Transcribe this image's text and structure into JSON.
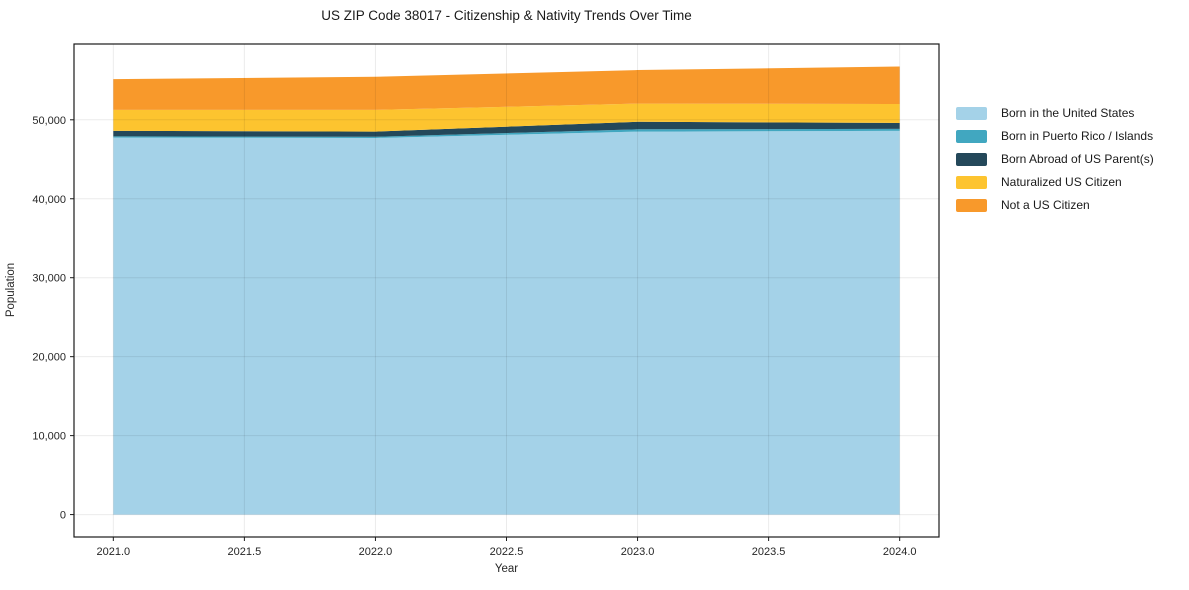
{
  "title": "US ZIP Code 38017 - Citizenship & Nativity Trends Over Time",
  "chart_data": {
    "type": "area",
    "stacked": true,
    "title": "US ZIP Code 38017 - Citizenship & Nativity Trends Over Time",
    "xlabel": "Year",
    "ylabel": "Population",
    "x": [
      2021,
      2022,
      2023,
      2024
    ],
    "series": [
      {
        "name": "Born in the United States",
        "color": "#A4D2E8",
        "values": [
          47750,
          47700,
          48500,
          48600
        ]
      },
      {
        "name": "Born in Puerto Rico / Islands",
        "color": "#41A7C0",
        "values": [
          150,
          150,
          300,
          250
        ]
      },
      {
        "name": "Born Abroad of US Parent(s)",
        "color": "#24485A",
        "values": [
          700,
          650,
          950,
          750
        ]
      },
      {
        "name": "Naturalized US Citizen",
        "color": "#FDC42F",
        "values": [
          2650,
          2750,
          2300,
          2400
        ]
      },
      {
        "name": "Not a US Citizen",
        "color": "#F8992B",
        "values": [
          3900,
          4200,
          4250,
          4750
        ]
      }
    ],
    "totals": [
      55150,
      55450,
      56300,
      56750
    ],
    "xlim": [
      2020.85,
      2024.15
    ],
    "ylim": [
      -2840,
      59600
    ],
    "x_ticks": [
      {
        "value": 2021.0,
        "label": "2021.0"
      },
      {
        "value": 2021.5,
        "label": "2021.5"
      },
      {
        "value": 2022.0,
        "label": "2022.0"
      },
      {
        "value": 2022.5,
        "label": "2022.5"
      },
      {
        "value": 2023.0,
        "label": "2023.0"
      },
      {
        "value": 2023.5,
        "label": "2023.5"
      },
      {
        "value": 2024.0,
        "label": "2024.0"
      }
    ],
    "y_ticks": [
      {
        "value": 0,
        "label": "0"
      },
      {
        "value": 10000,
        "label": "10,000"
      },
      {
        "value": 20000,
        "label": "20,000"
      },
      {
        "value": 30000,
        "label": "30,000"
      },
      {
        "value": 40000,
        "label": "40,000"
      },
      {
        "value": 50000,
        "label": "50,000"
      }
    ],
    "grid": true,
    "legend_position": "right-outside"
  },
  "style": {
    "spine_color": "#1a1a1a",
    "grid_color": "rgba(0,0,0,0.08)",
    "text_color": "#262626"
  }
}
